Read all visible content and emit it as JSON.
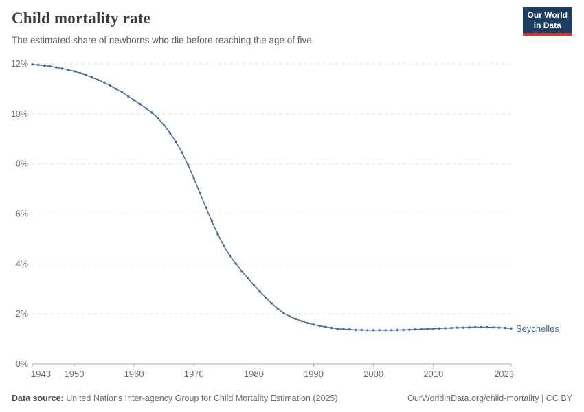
{
  "header": {
    "title": "Child mortality rate",
    "subtitle": "The estimated share of newborns who die before reaching the age of five.",
    "logo": {
      "line1": "Our World",
      "line2": "in Data"
    }
  },
  "colors": {
    "line": "#4C6A9C",
    "grid": "#dddddd",
    "axis": "#a8a8a8",
    "tick_label": "#6e6e6e",
    "logo_bg": "#1d3d63",
    "logo_stripe": "#dd3627"
  },
  "chart_data": {
    "type": "line",
    "title": "Child mortality rate",
    "xlabel": "",
    "ylabel": "",
    "xlim": [
      1943,
      2023
    ],
    "ylim": [
      0,
      12
    ],
    "x_ticks": [
      1943,
      1950,
      1960,
      1970,
      1980,
      1990,
      2000,
      2010,
      2023
    ],
    "y_ticks": [
      0,
      2,
      4,
      6,
      8,
      10,
      12
    ],
    "y_tick_suffix": "%",
    "grid": "horizontal-dashed",
    "legend": "end-of-line-label",
    "series": [
      {
        "name": "Seychelles",
        "color": "#4C6A9C",
        "x": [
          1943,
          1944,
          1945,
          1946,
          1947,
          1948,
          1949,
          1950,
          1951,
          1952,
          1953,
          1954,
          1955,
          1956,
          1957,
          1958,
          1959,
          1960,
          1961,
          1962,
          1963,
          1964,
          1965,
          1966,
          1967,
          1968,
          1969,
          1970,
          1971,
          1972,
          1973,
          1974,
          1975,
          1976,
          1977,
          1978,
          1979,
          1980,
          1981,
          1982,
          1983,
          1984,
          1985,
          1986,
          1987,
          1988,
          1989,
          1990,
          1991,
          1992,
          1993,
          1994,
          1995,
          1996,
          1997,
          1998,
          1999,
          2000,
          2001,
          2002,
          2003,
          2004,
          2005,
          2006,
          2007,
          2008,
          2009,
          2010,
          2011,
          2012,
          2013,
          2014,
          2015,
          2016,
          2017,
          2018,
          2019,
          2020,
          2021,
          2022,
          2023
        ],
        "values": [
          11.98,
          11.96,
          11.93,
          11.9,
          11.86,
          11.81,
          11.76,
          11.7,
          11.63,
          11.55,
          11.46,
          11.36,
          11.25,
          11.13,
          11.0,
          10.86,
          10.71,
          10.55,
          10.39,
          10.22,
          10.05,
          9.82,
          9.55,
          9.24,
          8.88,
          8.46,
          7.97,
          7.42,
          6.84,
          6.26,
          5.7,
          5.18,
          4.72,
          4.33,
          4.01,
          3.71,
          3.43,
          3.16,
          2.9,
          2.65,
          2.42,
          2.21,
          2.03,
          1.9,
          1.8,
          1.71,
          1.63,
          1.57,
          1.52,
          1.48,
          1.44,
          1.41,
          1.39,
          1.38,
          1.36,
          1.36,
          1.35,
          1.35,
          1.35,
          1.35,
          1.35,
          1.36,
          1.36,
          1.37,
          1.38,
          1.39,
          1.4,
          1.41,
          1.42,
          1.43,
          1.44,
          1.45,
          1.45,
          1.46,
          1.47,
          1.47,
          1.47,
          1.46,
          1.45,
          1.44,
          1.42
        ]
      }
    ]
  },
  "footer": {
    "source_label": "Data source:",
    "source_text": " United Nations Inter-agency Group for Child Mortality Estimation (2025)",
    "link_text": "OurWorldinData.org/child-mortality",
    "separator": " | ",
    "license": "CC BY"
  }
}
